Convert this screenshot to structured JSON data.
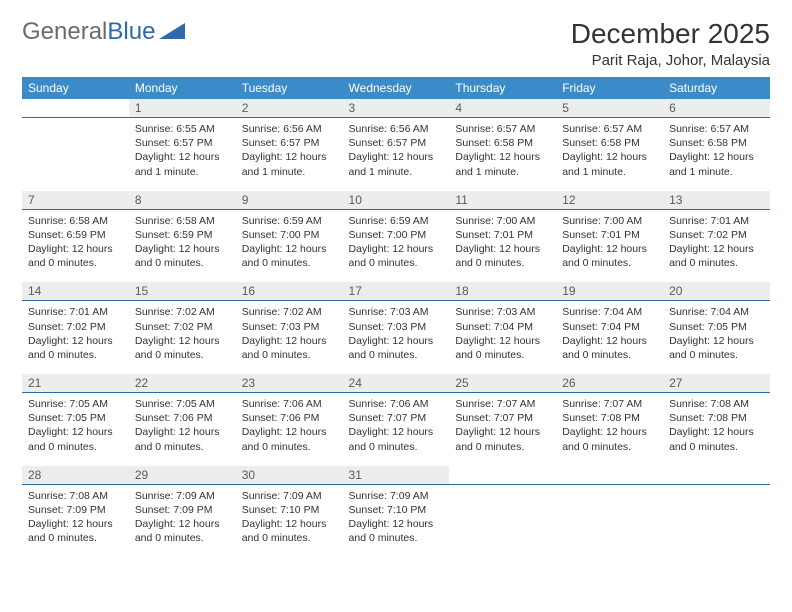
{
  "logo": {
    "text1": "General",
    "text2": "Blue"
  },
  "title": "December 2025",
  "location": "Parit Raja, Johor, Malaysia",
  "colors": {
    "header_bg": "#3c8bc9",
    "header_text": "#ffffff",
    "daynum_bg": "#eceded",
    "daynum_border": "#2f6aa8",
    "body_text": "#333333",
    "logo_gray": "#6b6b6b",
    "logo_blue": "#2f6aa8"
  },
  "weekdays": [
    "Sunday",
    "Monday",
    "Tuesday",
    "Wednesday",
    "Thursday",
    "Friday",
    "Saturday"
  ],
  "weeks": [
    {
      "nums": [
        "",
        "1",
        "2",
        "3",
        "4",
        "5",
        "6"
      ],
      "cells": [
        null,
        {
          "sr": "Sunrise: 6:55 AM",
          "ss": "Sunset: 6:57 PM",
          "dl": "Daylight: 12 hours and 1 minute."
        },
        {
          "sr": "Sunrise: 6:56 AM",
          "ss": "Sunset: 6:57 PM",
          "dl": "Daylight: 12 hours and 1 minute."
        },
        {
          "sr": "Sunrise: 6:56 AM",
          "ss": "Sunset: 6:57 PM",
          "dl": "Daylight: 12 hours and 1 minute."
        },
        {
          "sr": "Sunrise: 6:57 AM",
          "ss": "Sunset: 6:58 PM",
          "dl": "Daylight: 12 hours and 1 minute."
        },
        {
          "sr": "Sunrise: 6:57 AM",
          "ss": "Sunset: 6:58 PM",
          "dl": "Daylight: 12 hours and 1 minute."
        },
        {
          "sr": "Sunrise: 6:57 AM",
          "ss": "Sunset: 6:58 PM",
          "dl": "Daylight: 12 hours and 1 minute."
        }
      ]
    },
    {
      "nums": [
        "7",
        "8",
        "9",
        "10",
        "11",
        "12",
        "13"
      ],
      "cells": [
        {
          "sr": "Sunrise: 6:58 AM",
          "ss": "Sunset: 6:59 PM",
          "dl": "Daylight: 12 hours and 0 minutes."
        },
        {
          "sr": "Sunrise: 6:58 AM",
          "ss": "Sunset: 6:59 PM",
          "dl": "Daylight: 12 hours and 0 minutes."
        },
        {
          "sr": "Sunrise: 6:59 AM",
          "ss": "Sunset: 7:00 PM",
          "dl": "Daylight: 12 hours and 0 minutes."
        },
        {
          "sr": "Sunrise: 6:59 AM",
          "ss": "Sunset: 7:00 PM",
          "dl": "Daylight: 12 hours and 0 minutes."
        },
        {
          "sr": "Sunrise: 7:00 AM",
          "ss": "Sunset: 7:01 PM",
          "dl": "Daylight: 12 hours and 0 minutes."
        },
        {
          "sr": "Sunrise: 7:00 AM",
          "ss": "Sunset: 7:01 PM",
          "dl": "Daylight: 12 hours and 0 minutes."
        },
        {
          "sr": "Sunrise: 7:01 AM",
          "ss": "Sunset: 7:02 PM",
          "dl": "Daylight: 12 hours and 0 minutes."
        }
      ]
    },
    {
      "nums": [
        "14",
        "15",
        "16",
        "17",
        "18",
        "19",
        "20"
      ],
      "cells": [
        {
          "sr": "Sunrise: 7:01 AM",
          "ss": "Sunset: 7:02 PM",
          "dl": "Daylight: 12 hours and 0 minutes."
        },
        {
          "sr": "Sunrise: 7:02 AM",
          "ss": "Sunset: 7:02 PM",
          "dl": "Daylight: 12 hours and 0 minutes."
        },
        {
          "sr": "Sunrise: 7:02 AM",
          "ss": "Sunset: 7:03 PM",
          "dl": "Daylight: 12 hours and 0 minutes."
        },
        {
          "sr": "Sunrise: 7:03 AM",
          "ss": "Sunset: 7:03 PM",
          "dl": "Daylight: 12 hours and 0 minutes."
        },
        {
          "sr": "Sunrise: 7:03 AM",
          "ss": "Sunset: 7:04 PM",
          "dl": "Daylight: 12 hours and 0 minutes."
        },
        {
          "sr": "Sunrise: 7:04 AM",
          "ss": "Sunset: 7:04 PM",
          "dl": "Daylight: 12 hours and 0 minutes."
        },
        {
          "sr": "Sunrise: 7:04 AM",
          "ss": "Sunset: 7:05 PM",
          "dl": "Daylight: 12 hours and 0 minutes."
        }
      ]
    },
    {
      "nums": [
        "21",
        "22",
        "23",
        "24",
        "25",
        "26",
        "27"
      ],
      "cells": [
        {
          "sr": "Sunrise: 7:05 AM",
          "ss": "Sunset: 7:05 PM",
          "dl": "Daylight: 12 hours and 0 minutes."
        },
        {
          "sr": "Sunrise: 7:05 AM",
          "ss": "Sunset: 7:06 PM",
          "dl": "Daylight: 12 hours and 0 minutes."
        },
        {
          "sr": "Sunrise: 7:06 AM",
          "ss": "Sunset: 7:06 PM",
          "dl": "Daylight: 12 hours and 0 minutes."
        },
        {
          "sr": "Sunrise: 7:06 AM",
          "ss": "Sunset: 7:07 PM",
          "dl": "Daylight: 12 hours and 0 minutes."
        },
        {
          "sr": "Sunrise: 7:07 AM",
          "ss": "Sunset: 7:07 PM",
          "dl": "Daylight: 12 hours and 0 minutes."
        },
        {
          "sr": "Sunrise: 7:07 AM",
          "ss": "Sunset: 7:08 PM",
          "dl": "Daylight: 12 hours and 0 minutes."
        },
        {
          "sr": "Sunrise: 7:08 AM",
          "ss": "Sunset: 7:08 PM",
          "dl": "Daylight: 12 hours and 0 minutes."
        }
      ]
    },
    {
      "nums": [
        "28",
        "29",
        "30",
        "31",
        "",
        "",
        ""
      ],
      "cells": [
        {
          "sr": "Sunrise: 7:08 AM",
          "ss": "Sunset: 7:09 PM",
          "dl": "Daylight: 12 hours and 0 minutes."
        },
        {
          "sr": "Sunrise: 7:09 AM",
          "ss": "Sunset: 7:09 PM",
          "dl": "Daylight: 12 hours and 0 minutes."
        },
        {
          "sr": "Sunrise: 7:09 AM",
          "ss": "Sunset: 7:10 PM",
          "dl": "Daylight: 12 hours and 0 minutes."
        },
        {
          "sr": "Sunrise: 7:09 AM",
          "ss": "Sunset: 7:10 PM",
          "dl": "Daylight: 12 hours and 0 minutes."
        },
        null,
        null,
        null
      ]
    }
  ]
}
